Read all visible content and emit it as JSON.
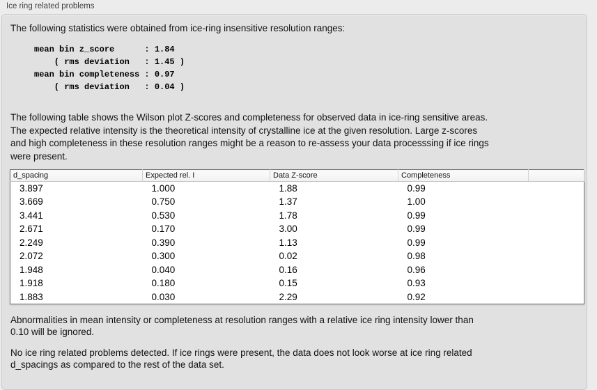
{
  "panel": {
    "title": "Ice ring related problems"
  },
  "intro": {
    "text": "The following statistics were obtained from ice-ring insensitive resolution ranges:"
  },
  "stats_block": {
    "lines": [
      "mean bin z_score      : 1.84",
      "    ( rms deviation   : 1.45 )",
      "mean bin completeness : 0.97",
      "    ( rms deviation   : 0.04 )"
    ]
  },
  "description": {
    "lines": [
      "The following table shows the Wilson plot Z-scores and completeness for observed data in ice-ring sensitive areas.",
      "The expected relative intensity is the theoretical intensity of crystalline ice at the given resolution. Large z-scores",
      "and high completeness in these resolution ranges might be a reason to re-assess your data processsing if ice rings",
      "were present."
    ]
  },
  "table": {
    "columns": [
      "d_spacing",
      "Expected rel. I",
      "Data Z-score",
      "Completeness",
      ""
    ],
    "rows": [
      [
        "3.897",
        "1.000",
        "1.88",
        "0.99"
      ],
      [
        "3.669",
        "0.750",
        "1.37",
        "1.00"
      ],
      [
        "3.441",
        "0.530",
        "1.78",
        "0.99"
      ],
      [
        "2.671",
        "0.170",
        "3.00",
        "0.99"
      ],
      [
        "2.249",
        "0.390",
        "1.13",
        "0.99"
      ],
      [
        "2.072",
        "0.300",
        "0.02",
        "0.98"
      ],
      [
        "1.948",
        "0.040",
        "0.16",
        "0.96"
      ],
      [
        "1.918",
        "0.180",
        "0.15",
        "0.93"
      ],
      [
        "1.883",
        "0.030",
        "2.29",
        "0.92"
      ]
    ]
  },
  "notes": {
    "abnormalities": [
      "Abnormalities in mean intensity or completeness at resolution ranges with a relative ice ring intensity lower than",
      "0.10 will be ignored."
    ],
    "conclusion": [
      "No ice ring related problems detected. If ice rings were present, the data does not look worse at ice ring related",
      "d_spacings as compared to the rest of the data set."
    ]
  }
}
